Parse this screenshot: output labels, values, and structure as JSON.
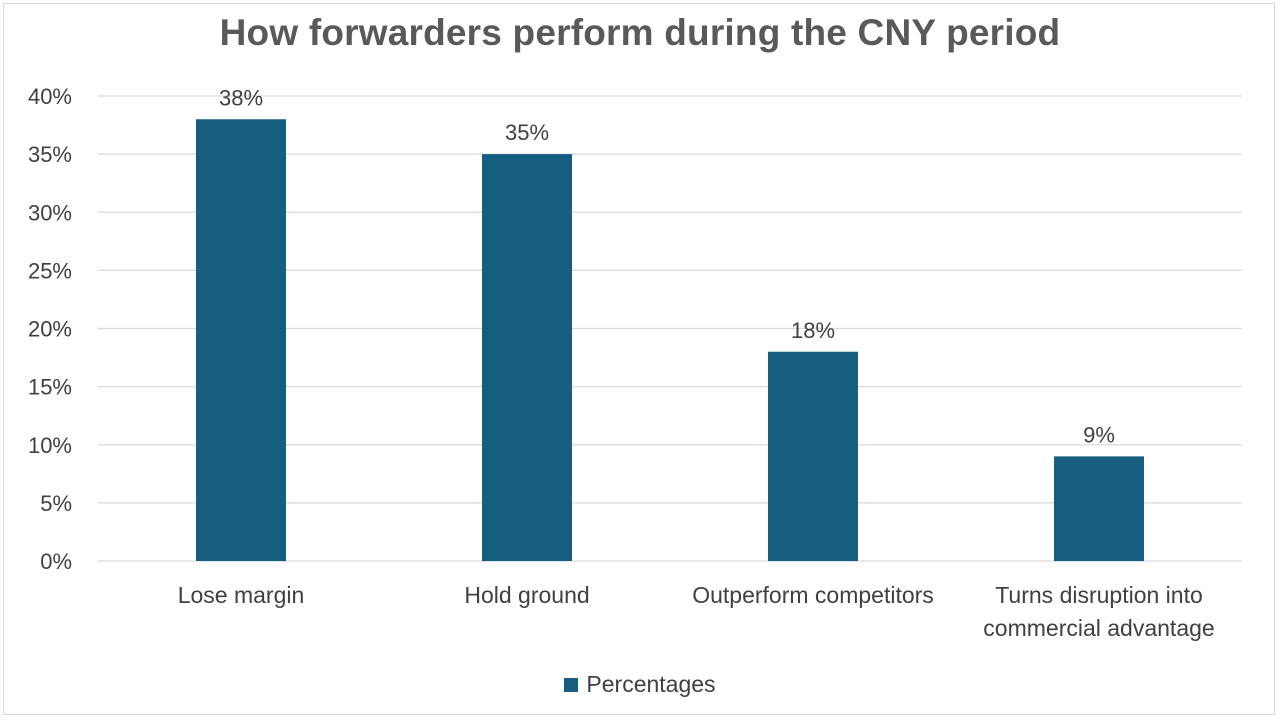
{
  "chart_data": {
    "type": "bar",
    "title": "How forwarders perform during the CNY period",
    "categories": [
      [
        "Lose margin"
      ],
      [
        "Hold ground"
      ],
      [
        "Outperform competitors"
      ],
      [
        "Turns disruption into",
        "commercial advantage"
      ]
    ],
    "series": [
      {
        "name": "Percentages",
        "values": [
          38,
          35,
          18,
          9
        ],
        "data_labels": [
          "38%",
          "35%",
          "18%",
          "9%"
        ],
        "color": "#165e80"
      }
    ],
    "yticks": [
      0,
      5,
      10,
      15,
      20,
      25,
      30,
      35,
      40
    ],
    "ytick_labels": [
      "0%",
      "5%",
      "10%",
      "15%",
      "20%",
      "25%",
      "30%",
      "35%",
      "40%"
    ],
    "ylim": [
      0,
      40
    ],
    "grid": true,
    "legend_position": "bottom"
  },
  "colors": {
    "bar": "#165e80",
    "gridline": "#d9d9d9",
    "title": "#595959",
    "text": "#404040"
  }
}
